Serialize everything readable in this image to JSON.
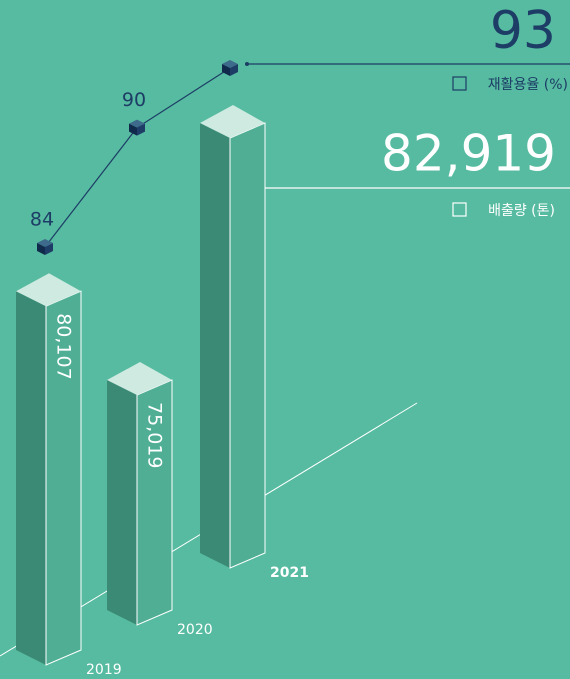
{
  "chart_data": {
    "type": "bar",
    "categories": [
      "2019",
      "2020",
      "2021"
    ],
    "series": [
      {
        "name": "배출량 (톤)",
        "color": "#4fae94",
        "values": [
          80107,
          75019,
          82919
        ],
        "value_labels": [
          "80,107",
          "75,019",
          "82,919"
        ]
      },
      {
        "name": "재활용율 (%)",
        "color": "#1d3d66",
        "values": [
          84,
          90,
          93
        ]
      }
    ]
  }
}
